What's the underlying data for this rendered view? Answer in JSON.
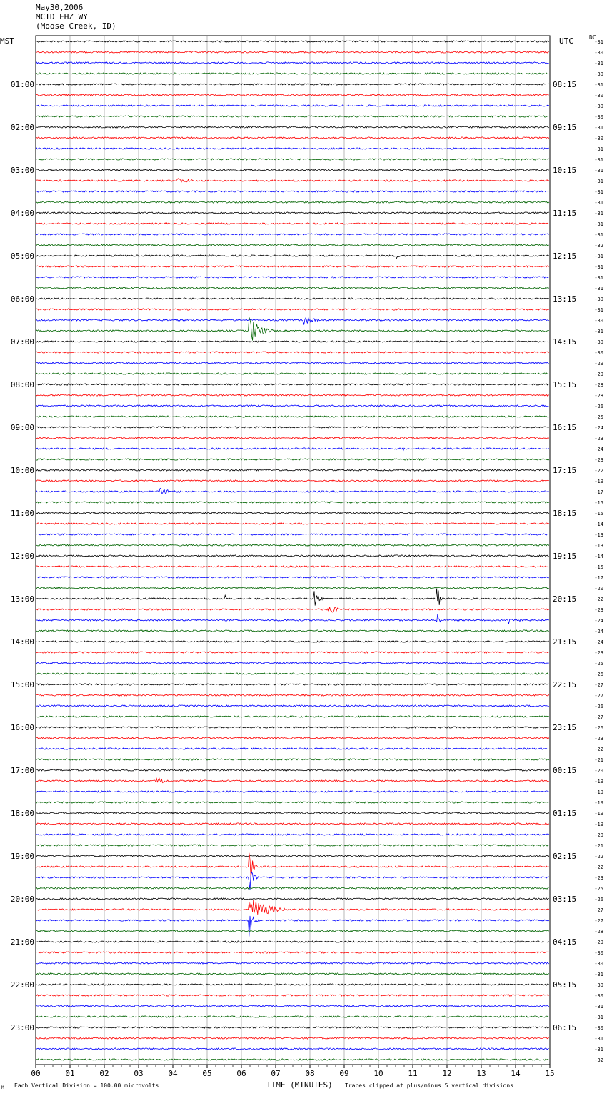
{
  "header": {
    "date": "May30,2006",
    "station": "MCID EHZ WY",
    "location": "(Moose Creek, ID)"
  },
  "left_tz": "MST",
  "right_tz": "UTC",
  "dc_label": "DC",
  "footer": {
    "scale": "Each Vertical Division = 100.00 microvolts",
    "clip": "Traces clipped at plus/minus 5 vertical divisions",
    "mark": "M"
  },
  "chart_data": {
    "type": "line",
    "title": "MCID EHZ WY",
    "xlabel": "TIME (MINUTES)",
    "xlim": [
      0,
      15
    ],
    "x_ticks": [
      "00",
      "01",
      "02",
      "03",
      "04",
      "05",
      "06",
      "07",
      "08",
      "09",
      "10",
      "11",
      "12",
      "13",
      "14",
      "15"
    ],
    "trace_colors": [
      "#000000",
      "#ff0000",
      "#0000ff",
      "#006400"
    ],
    "left_hour_labels": [
      "01:00",
      "02:00",
      "03:00",
      "04:00",
      "05:00",
      "06:00",
      "07:00",
      "08:00",
      "09:00",
      "10:00",
      "11:00",
      "12:00",
      "13:00",
      "14:00",
      "15:00",
      "16:00",
      "17:00",
      "18:00",
      "19:00",
      "20:00",
      "21:00",
      "22:00",
      "23:00"
    ],
    "right_hour_labels": [
      "08:15",
      "09:15",
      "10:15",
      "11:15",
      "12:15",
      "13:15",
      "14:15",
      "15:15",
      "16:15",
      "17:15",
      "18:15",
      "19:15",
      "20:15",
      "21:15",
      "22:15",
      "23:15",
      "00:15",
      "01:15",
      "02:15",
      "03:15",
      "04:15",
      "05:15",
      "06:15"
    ],
    "dc_offsets": [
      "-31",
      "-30",
      "-31",
      "-30",
      "-31",
      "-30",
      "-30",
      "-30",
      "-31",
      "-30",
      "-31",
      "-31",
      "-31",
      "-31",
      "-31",
      "-31",
      "-31",
      "-31",
      "-31",
      "-32",
      "-31",
      "-31",
      "-31",
      "-31",
      "-30",
      "-31",
      "-30",
      "-31",
      "-30",
      "-30",
      "-29",
      "-29",
      "-28",
      "-28",
      "-26",
      "-25",
      "-24",
      "-23",
      "-24",
      "-23",
      "-22",
      "-19",
      "-17",
      "-15",
      "-15",
      "-14",
      "-13",
      "-13",
      "-14",
      "-15",
      "-17",
      "-20",
      "-22",
      "-23",
      "-24",
      "-24",
      "-24",
      "-23",
      "-25",
      "-26",
      "-27",
      "-27",
      "-26",
      "-27",
      "-26",
      "-23",
      "-22",
      "-21",
      "-20",
      "-19",
      "-19",
      "-19",
      "-19",
      "-19",
      "-20",
      "-21",
      "-22",
      "-22",
      "-23",
      "-25",
      "-26",
      "-27",
      "-27",
      "-28",
      "-29",
      "-30",
      "-30",
      "-31",
      "-30",
      "-30",
      "-31",
      "-31",
      "-30",
      "-31",
      "-31",
      "-32"
    ],
    "events": [
      {
        "row": 13,
        "start_min": 4.1,
        "duration_min": 1.2,
        "amp": 5
      },
      {
        "row": 20,
        "start_min": 10.5,
        "duration_min": 0.3,
        "amp": 6
      },
      {
        "row": 26,
        "start_min": 7.8,
        "duration_min": 0.8,
        "amp": 9
      },
      {
        "row": 27,
        "start_min": 6.2,
        "duration_min": 0.8,
        "amp": 24
      },
      {
        "row": 38,
        "start_min": 10.7,
        "duration_min": 0.2,
        "amp": 5
      },
      {
        "row": 42,
        "start_min": 3.6,
        "duration_min": 1.2,
        "amp": 6
      },
      {
        "row": 52,
        "start_min": 5.5,
        "duration_min": 0.3,
        "amp": 8
      },
      {
        "row": 52,
        "start_min": 8.1,
        "duration_min": 0.4,
        "amp": 16
      },
      {
        "row": 52,
        "start_min": 11.7,
        "duration_min": 0.2,
        "amp": 30
      },
      {
        "row": 53,
        "start_min": 8.5,
        "duration_min": 0.6,
        "amp": 10
      },
      {
        "row": 54,
        "start_min": 13.8,
        "duration_min": 0.9,
        "amp": 6
      },
      {
        "row": 54,
        "start_min": 11.7,
        "duration_min": 0.2,
        "amp": 14
      },
      {
        "row": 69,
        "start_min": 3.5,
        "duration_min": 0.6,
        "amp": 9
      },
      {
        "row": 77,
        "start_min": 6.2,
        "duration_min": 0.3,
        "amp": 30
      },
      {
        "row": 78,
        "start_min": 6.2,
        "duration_min": 0.3,
        "amp": 30
      },
      {
        "row": 81,
        "start_min": 6.2,
        "duration_min": 1.3,
        "amp": 22
      },
      {
        "row": 82,
        "start_min": 6.2,
        "duration_min": 0.3,
        "amp": 30
      }
    ]
  }
}
